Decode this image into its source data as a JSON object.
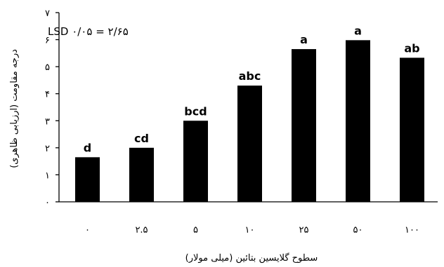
{
  "chart_data": {
    "type": "bar",
    "categories": [
      "۰",
      "۲.۵",
      "۵",
      "۱۰",
      "۲۵",
      "۵۰",
      "۱۰۰"
    ],
    "values": [
      1.65,
      2.0,
      3.0,
      4.3,
      5.65,
      5.98,
      5.33
    ],
    "significance_letters": [
      "d",
      "cd",
      "bcd",
      "abc",
      "a",
      "a",
      "ab"
    ],
    "yticks": [
      "۰",
      "۱",
      "۲",
      "۳",
      "۴",
      "۵",
      "۶",
      "۷"
    ],
    "ylim": [
      0,
      7
    ],
    "xlabel": "سطوح گلایسین بتائین (میلی مولار)",
    "ylabel": "درجه مقاومت (ارزیابی ظاهری)",
    "annotation": "LSD ۰/۰۵ = ۲/۶۵",
    "grid": false,
    "bar_color": "#000000"
  }
}
